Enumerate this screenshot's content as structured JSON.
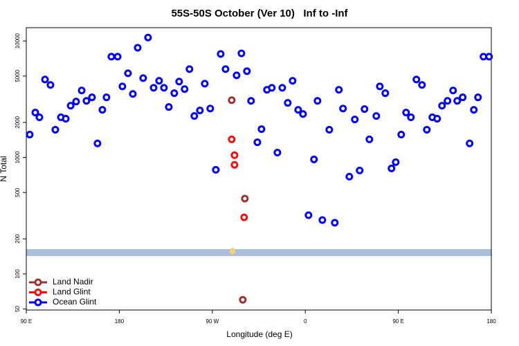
{
  "chart_data": {
    "type": "scatter",
    "title": "55S-50S October (Ver 10)   Inf to -Inf",
    "xlabel": "Longitude (deg E)",
    "ylabel": "N Total",
    "ylog": true,
    "legend": "lower left",
    "xlim": [
      90,
      540
    ],
    "xticks": [
      {
        "value": 90,
        "label": "90 E"
      },
      {
        "value": 180,
        "label": "180"
      },
      {
        "value": 270,
        "label": "90 W"
      },
      {
        "value": 360,
        "label": "0"
      },
      {
        "value": 450,
        "label": "90 E"
      },
      {
        "value": 540,
        "label": "180"
      }
    ],
    "ylim": [
      49,
      13000
    ],
    "yticks": [
      50,
      100,
      200,
      500,
      1000,
      2000,
      5000,
      10000
    ],
    "series": [
      {
        "name": "Land Nadir",
        "color": "#993333",
        "x": [
          288.8,
          301.5,
          299.5
        ],
        "values": [
          3100,
          443,
          60
        ]
      },
      {
        "name": "Land Glint",
        "color": "#ee1111",
        "x": [
          288.8,
          291.5,
          291.5,
          300.8
        ],
        "values": [
          1430,
          1045,
          863,
          306
        ]
      },
      {
        "name": "Ocean Glint",
        "color": "#0000ee",
        "x": [
          93.3,
          98.7,
          102.7,
          108.1,
          113.4,
          118.1,
          123.5,
          128.2,
          132.9,
          138.2,
          143.6,
          148.2,
          153.6,
          158.9,
          163.6,
          167.6,
          172.3,
          178.4,
          183,
          188.4,
          193.1,
          197.8,
          203.1,
          207.8,
          213.2,
          218.5,
          223.2,
          227.9,
          233.2,
          237.9,
          243.2,
          247.9,
          252.6,
          258,
          262.7,
          268,
          273.4,
          278.1,
          282.8,
          293.5,
          298.2,
          303.5,
          307.5,
          313.6,
          317.6,
          322.9,
          327.6,
          333,
          337.7,
          343,
          347.7,
          353.1,
          357.8,
          363.1,
          368.4,
          371.8,
          376.5,
          383.2,
          388.5,
          392.5,
          396.5,
          402.6,
          407.9,
          412.6,
          417.3,
          422,
          428.7,
          432.1,
          437.4,
          443.4,
          447.5,
          452.8,
          457.5,
          462.2,
          467.5,
          472.9,
          477.6,
          482.9,
          487.6,
          492.3,
          497.6,
          503,
          507,
          512.3,
          519,
          523.1,
          527.1,
          532.4,
          537.8
        ],
        "values": [
          1570,
          2430,
          2210,
          4670,
          4190,
          1730,
          2210,
          2150,
          2780,
          3020,
          3760,
          3060,
          3280,
          1320,
          2560,
          3280,
          7330,
          7330,
          4070,
          5280,
          3510,
          8750,
          4800,
          10700,
          3960,
          4550,
          3960,
          2710,
          3560,
          4480,
          3860,
          5730,
          2270,
          2530,
          4300,
          2630,
          783,
          7730,
          5730,
          5070,
          7830,
          5500,
          3060,
          1350,
          1750,
          3810,
          3960,
          1100,
          3960,
          2940,
          4550,
          2560,
          2360,
          319,
          962,
          3060,
          290,
          1730,
          275,
          3810,
          2630,
          684,
          2120,
          773,
          2600,
          1430,
          2270,
          4070,
          3560,
          805,
          910,
          1570,
          2430,
          2210,
          4670,
          4190,
          1730,
          2210,
          2150,
          2780,
          3060,
          3760,
          3060,
          3280,
          1320,
          2560,
          3280,
          7330,
          7330
        ]
      }
    ]
  }
}
